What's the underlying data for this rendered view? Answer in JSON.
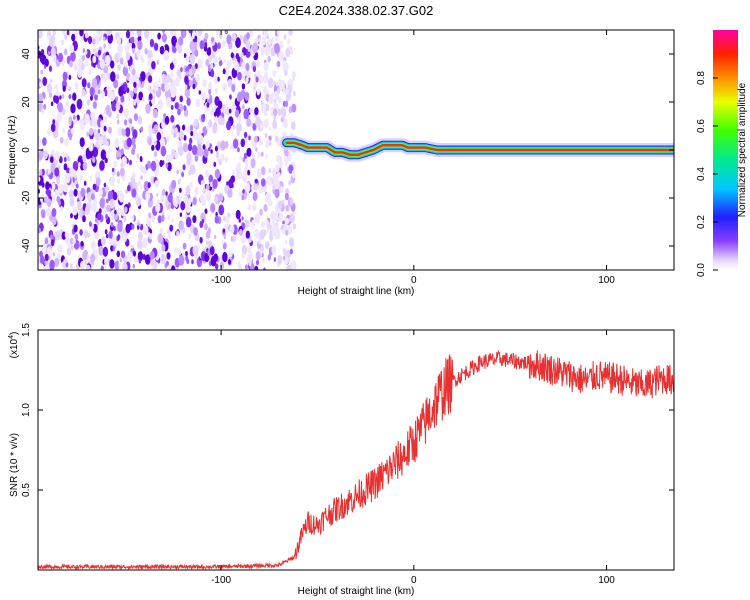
{
  "title": "C2E4.2024.338.02.37.G02",
  "chart_data": [
    {
      "type": "heatmap",
      "xlabel": "Height of straight line (km)",
      "ylabel": "Frequency (Hz)",
      "xlim": [
        -195,
        135
      ],
      "ylim": [
        -50,
        50
      ],
      "xticks": [
        -100,
        0,
        100
      ],
      "yticks": [
        -40,
        -20,
        0,
        20,
        40
      ],
      "noise_region": {
        "x": [
          -195,
          -65
        ]
      },
      "ridge": {
        "x": [
          -66,
          -62,
          -58,
          -55,
          -50,
          -45,
          -41,
          -37,
          -33,
          -29,
          -25,
          -21,
          -16,
          -11,
          -6,
          -3,
          2,
          6,
          12,
          20,
          40,
          60,
          80,
          100,
          120,
          135
        ],
        "y": [
          3,
          3,
          2,
          1,
          1,
          1,
          -1,
          -1,
          -2,
          -2,
          -1,
          0,
          2,
          2,
          2,
          1,
          1,
          1,
          0,
          0,
          0,
          0,
          0,
          0,
          0,
          0
        ]
      },
      "colorbar": {
        "label": "Normalized spectral amplitude",
        "ticks": [
          0.0,
          0.2,
          0.4,
          0.6,
          0.8
        ],
        "range": [
          0,
          1
        ]
      }
    },
    {
      "type": "line",
      "xlabel": "Height of straight line (km)",
      "ylabel": "SNR (10 * v/v)",
      "y_multiplier": "(x10",
      "y_multiplier_exp": "4",
      "xlim": [
        -195,
        135
      ],
      "ylim": [
        0,
        1.5
      ],
      "xticks": [
        -100,
        0,
        100
      ],
      "yticks": [
        0.5,
        1.0,
        1.5
      ],
      "series": [
        {
          "color": "#e83030",
          "x": [
            -195,
            -150,
            -100,
            -70,
            -62,
            -58,
            -55,
            -50,
            -45,
            -40,
            -35,
            -30,
            -25,
            -20,
            -15,
            -10,
            -5,
            0,
            5,
            10,
            15,
            20,
            25,
            30,
            35,
            40,
            45,
            50,
            55,
            60,
            65,
            70,
            75,
            80,
            85,
            90,
            95,
            100,
            105,
            110,
            115,
            120,
            125,
            130,
            135
          ],
          "y": [
            0.02,
            0.02,
            0.02,
            0.03,
            0.08,
            0.22,
            0.3,
            0.28,
            0.34,
            0.38,
            0.42,
            0.46,
            0.5,
            0.54,
            0.6,
            0.66,
            0.72,
            0.8,
            0.9,
            1.02,
            1.12,
            1.18,
            1.22,
            1.26,
            1.3,
            1.31,
            1.32,
            1.31,
            1.3,
            1.29,
            1.28,
            1.26,
            1.24,
            1.22,
            1.2,
            1.18,
            1.22,
            1.2,
            1.2,
            1.18,
            1.16,
            1.15,
            1.18,
            1.2,
            1.18
          ]
        }
      ]
    }
  ]
}
